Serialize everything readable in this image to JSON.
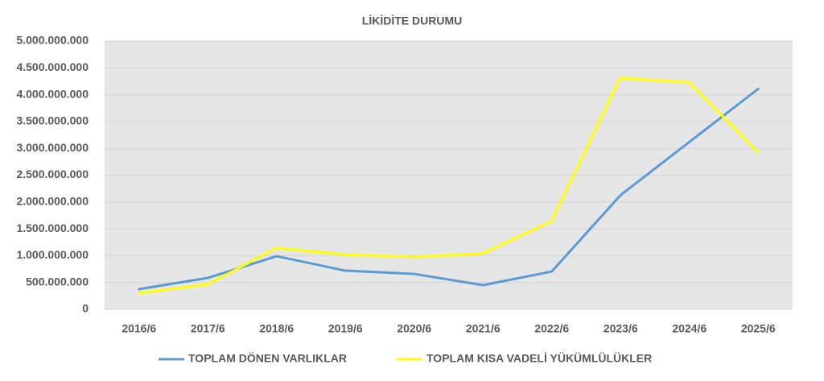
{
  "chart_data": {
    "type": "line",
    "title": "LİKİDİTE DURUMU",
    "categories": [
      "2016/6",
      "2017/6",
      "2018/6",
      "2019/6",
      "2020/6",
      "2021/6",
      "2022/6",
      "2023/6",
      "2024/6",
      "2025/6"
    ],
    "series": [
      {
        "name": "TOPLAM DÖNEN VARLIKLAR",
        "color": "#5b9bd5",
        "values": [
          375000000,
          585000000,
          990000000,
          720000000,
          660000000,
          450000000,
          705000000,
          2130000000,
          3120000000,
          4110000000
        ]
      },
      {
        "name": "TOPLAM KISA VADELİ YÜKÜMLÜLÜKLER",
        "color": "#ffff00",
        "values": [
          300000000,
          465000000,
          1140000000,
          1020000000,
          975000000,
          1040000000,
          1640000000,
          4310000000,
          4230000000,
          2930000000
        ]
      }
    ],
    "ylim": [
      0,
      5000000000
    ],
    "yticks": [
      0,
      {
        "value": 500000000,
        "label": "500.000.000"
      },
      {
        "value": 1000000000,
        "label": "1.000.000.000"
      },
      {
        "value": 1500000000,
        "label": "1.500.000.000"
      },
      {
        "value": 2000000000,
        "label": "2.000.000.000"
      },
      {
        "value": 2500000000,
        "label": "2.500.000.000"
      },
      {
        "value": 3000000000,
        "label": "3.000.000.000"
      },
      {
        "value": 3500000000,
        "label": "3.500.000.000"
      },
      {
        "value": 4000000000,
        "label": "4.000.000.000"
      },
      {
        "value": 4500000000,
        "label": "4.500.000.000"
      },
      {
        "value": 5000000000,
        "label": "5.000.000.000"
      }
    ],
    "grid": true,
    "legend": "bottom"
  }
}
